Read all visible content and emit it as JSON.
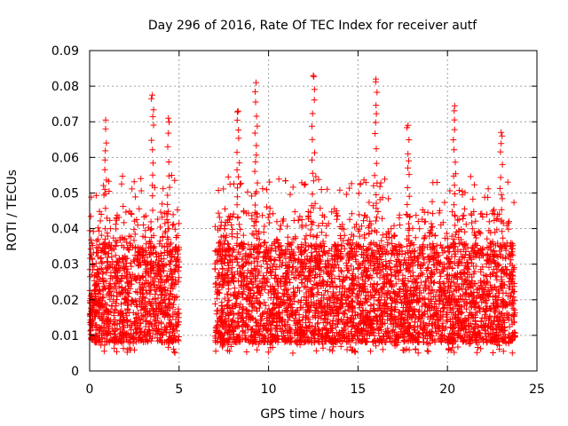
{
  "chart_data": {
    "type": "scatter",
    "title": "Day 296 of 2016, Rate Of TEC Index for receiver autf",
    "xlabel": "GPS time / hours",
    "ylabel": "ROTI / TECUs",
    "xlim": [
      0,
      25
    ],
    "ylim": [
      0,
      0.09
    ],
    "xticks": [
      "0",
      "5",
      "10",
      "15",
      "20",
      "25"
    ],
    "xtick_values": [
      0,
      5,
      10,
      15,
      20,
      25
    ],
    "yticks": [
      "0",
      "0.01",
      "0.02",
      "0.03",
      "0.04",
      "0.05",
      "0.06",
      "0.07",
      "0.08",
      "0.09"
    ],
    "ytick_values": [
      0,
      0.01,
      0.02,
      0.03,
      0.04,
      0.05,
      0.06,
      0.07,
      0.08,
      0.09
    ],
    "grid": true,
    "marker": "+",
    "color": "#ff0000",
    "series": [
      {
        "name": "ROTI",
        "data_segments": [
          {
            "x_start": 0.0,
            "x_end": 5.0
          },
          {
            "x_start": 7.0,
            "x_end": 23.8
          }
        ],
        "typical_range": [
          0.005,
          0.04
        ],
        "peaks": [
          {
            "x": 0.9,
            "y": 0.0705
          },
          {
            "x": 3.5,
            "y": 0.0775
          },
          {
            "x": 4.4,
            "y": 0.071
          },
          {
            "x": 8.3,
            "y": 0.073
          },
          {
            "x": 9.3,
            "y": 0.081
          },
          {
            "x": 12.5,
            "y": 0.083
          },
          {
            "x": 16.0,
            "y": 0.082
          },
          {
            "x": 17.8,
            "y": 0.069
          },
          {
            "x": 20.4,
            "y": 0.0745
          },
          {
            "x": 23.0,
            "y": 0.067
          }
        ]
      }
    ]
  }
}
